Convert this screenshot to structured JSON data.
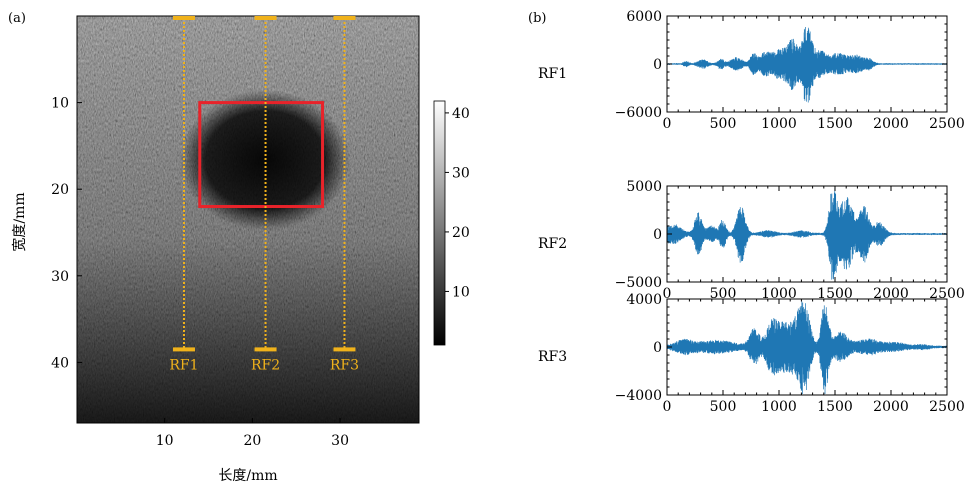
{
  "chart_data": [
    {
      "type": "heatmap",
      "panel_label": "(a)",
      "xlabel": "长度/mm",
      "ylabel": "宽度/mm",
      "xlim": [
        0,
        39
      ],
      "ylim": [
        0,
        47
      ],
      "xticks": [
        10,
        20,
        30
      ],
      "yticks": [
        10,
        20,
        30,
        40
      ],
      "y_inverted": true,
      "colorbar": {
        "range": [
          1,
          42
        ],
        "ticks": [
          10,
          20,
          30,
          40
        ],
        "colormap": "gray"
      },
      "roi": {
        "x0": 14,
        "x1": 28,
        "y0": 10,
        "y1": 22,
        "color": "#e8232a"
      },
      "scan_lines": [
        {
          "name": "RF1",
          "x": 12.2,
          "y_top": 0,
          "y_bottom": 38.5
        },
        {
          "name": "RF2",
          "x": 21.5,
          "y_top": 0,
          "y_bottom": 38.5
        },
        {
          "name": "RF3",
          "x": 30.5,
          "y_top": 0,
          "y_bottom": 38.5
        }
      ],
      "line_color": "#f0b21b"
    },
    {
      "type": "line",
      "panel_label": "(b)",
      "series_color": "#1f77b4",
      "xlim": [
        0,
        2500
      ],
      "xticks": [
        0,
        500,
        1000,
        1500,
        2000,
        2500
      ],
      "plots": [
        {
          "name": "RF1",
          "ylim": [
            -6000,
            6000
          ],
          "yticks": [
            -6000,
            0,
            6000
          ],
          "bursts": [
            {
              "center": 170,
              "width": 20,
              "amp": 300
            },
            {
              "center": 320,
              "width": 40,
              "amp": 500
            },
            {
              "center": 480,
              "width": 25,
              "amp": 600
            },
            {
              "center": 620,
              "width": 50,
              "amp": 800
            },
            {
              "center": 770,
              "width": 25,
              "amp": 1200
            },
            {
              "center": 870,
              "width": 45,
              "amp": 1400
            },
            {
              "center": 1000,
              "width": 55,
              "amp": 1800
            },
            {
              "center": 1120,
              "width": 45,
              "amp": 3000
            },
            {
              "center": 1250,
              "width": 40,
              "amp": 5000
            },
            {
              "center": 1370,
              "width": 50,
              "amp": 1500
            },
            {
              "center": 1530,
              "width": 70,
              "amp": 1300
            },
            {
              "center": 1700,
              "width": 60,
              "amp": 1000
            },
            {
              "center": 1810,
              "width": 30,
              "amp": 500
            }
          ]
        },
        {
          "name": "RF2",
          "ylim": [
            -5000,
            5000
          ],
          "yticks": [
            -5000,
            0,
            5000
          ],
          "bursts": [
            {
              "center": 50,
              "width": 70,
              "amp": 1000
            },
            {
              "center": 280,
              "width": 30,
              "amp": 2200
            },
            {
              "center": 400,
              "width": 40,
              "amp": 800
            },
            {
              "center": 500,
              "width": 25,
              "amp": 1500
            },
            {
              "center": 660,
              "width": 35,
              "amp": 3000
            },
            {
              "center": 900,
              "width": 60,
              "amp": 300
            },
            {
              "center": 1200,
              "width": 60,
              "amp": 300
            },
            {
              "center": 1480,
              "width": 30,
              "amp": 4600
            },
            {
              "center": 1600,
              "width": 60,
              "amp": 3800
            },
            {
              "center": 1760,
              "width": 40,
              "amp": 2800
            },
            {
              "center": 1900,
              "width": 40,
              "amp": 1300
            }
          ]
        },
        {
          "name": "RF3",
          "ylim": [
            -4000,
            4000
          ],
          "yticks": [
            -4000,
            0,
            4000
          ],
          "bursts": [
            {
              "center": 150,
              "width": 80,
              "amp": 500
            },
            {
              "center": 450,
              "width": 150,
              "amp": 500
            },
            {
              "center": 780,
              "width": 40,
              "amp": 1500
            },
            {
              "center": 940,
              "width": 50,
              "amp": 2200
            },
            {
              "center": 1050,
              "width": 50,
              "amp": 1600
            },
            {
              "center": 1180,
              "width": 60,
              "amp": 2600
            },
            {
              "center": 1240,
              "width": 40,
              "amp": 2200
            },
            {
              "center": 1410,
              "width": 30,
              "amp": 3800
            },
            {
              "center": 1550,
              "width": 60,
              "amp": 1200
            },
            {
              "center": 1800,
              "width": 100,
              "amp": 600
            },
            {
              "center": 2050,
              "width": 80,
              "amp": 300
            },
            {
              "center": 2280,
              "width": 60,
              "amp": 150
            }
          ]
        }
      ]
    }
  ]
}
